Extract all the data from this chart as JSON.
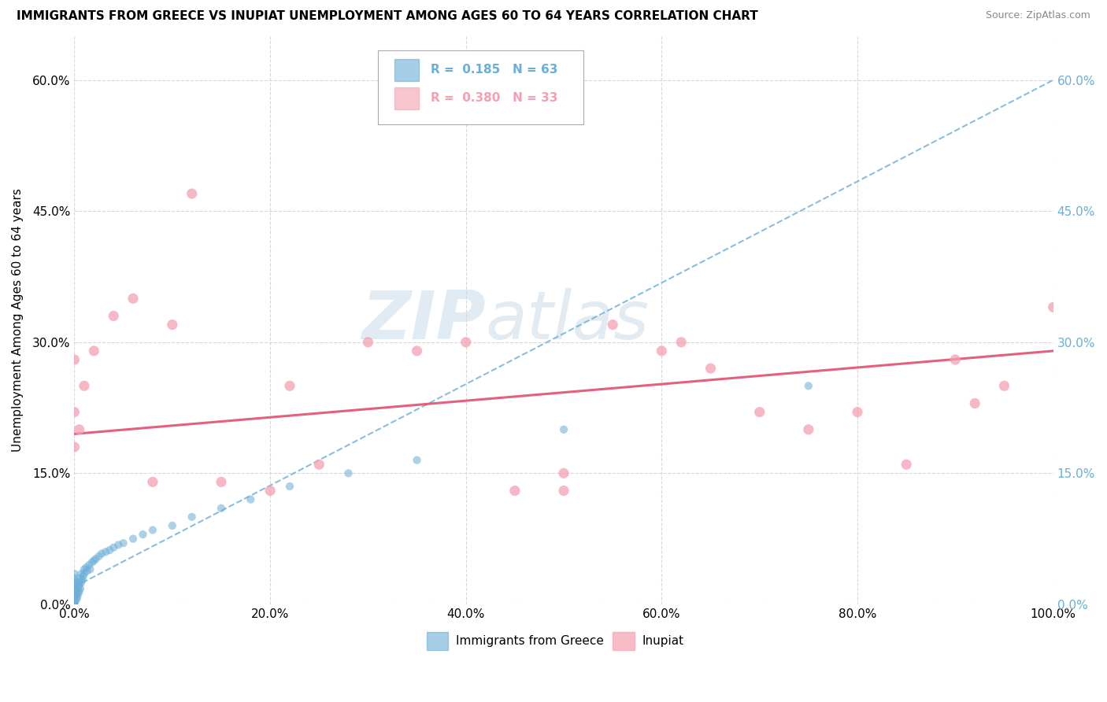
{
  "title": "IMMIGRANTS FROM GREECE VS INUPIAT UNEMPLOYMENT AMONG AGES 60 TO 64 YEARS CORRELATION CHART",
  "source": "Source: ZipAtlas.com",
  "ylabel": "Unemployment Among Ages 60 to 64 years",
  "legend_labels": [
    "Immigrants from Greece",
    "Inupiat"
  ],
  "legend_r": [
    "R =  0.185",
    "R =  0.380"
  ],
  "legend_n": [
    "N = 63",
    "N = 33"
  ],
  "color_greece": "#6baed6",
  "color_inupiat": "#f4a0b0",
  "trendline_color_greece": "#6baed6",
  "trendline_color_inupiat": "#e05070",
  "watermark_zip": "ZIP",
  "watermark_atlas": "atlas",
  "xlim": [
    0.0,
    1.0
  ],
  "ylim": [
    0.0,
    0.65
  ],
  "xticks": [
    0.0,
    0.2,
    0.4,
    0.6,
    0.8,
    1.0
  ],
  "yticks": [
    0.0,
    0.15,
    0.3,
    0.45,
    0.6
  ],
  "greece_scatter_x": [
    0.0,
    0.0,
    0.0,
    0.0,
    0.0,
    0.0,
    0.0,
    0.0,
    0.0,
    0.0,
    0.0,
    0.0,
    0.0,
    0.0,
    0.0,
    0.0,
    0.0,
    0.0,
    0.0,
    0.0,
    0.002,
    0.002,
    0.003,
    0.003,
    0.004,
    0.004,
    0.005,
    0.005,
    0.005,
    0.006,
    0.006,
    0.007,
    0.007,
    0.008,
    0.009,
    0.01,
    0.01,
    0.012,
    0.013,
    0.015,
    0.016,
    0.018,
    0.02,
    0.022,
    0.025,
    0.028,
    0.032,
    0.036,
    0.04,
    0.045,
    0.05,
    0.06,
    0.07,
    0.08,
    0.1,
    0.12,
    0.15,
    0.18,
    0.22,
    0.28,
    0.35,
    0.5,
    0.75
  ],
  "greece_scatter_y": [
    0.0,
    0.0,
    0.002,
    0.003,
    0.004,
    0.005,
    0.006,
    0.007,
    0.008,
    0.01,
    0.012,
    0.014,
    0.016,
    0.018,
    0.02,
    0.022,
    0.025,
    0.028,
    0.03,
    0.035,
    0.005,
    0.01,
    0.008,
    0.015,
    0.012,
    0.02,
    0.015,
    0.022,
    0.025,
    0.018,
    0.03,
    0.025,
    0.035,
    0.028,
    0.032,
    0.04,
    0.035,
    0.042,
    0.038,
    0.045,
    0.04,
    0.048,
    0.05,
    0.052,
    0.055,
    0.058,
    0.06,
    0.062,
    0.065,
    0.068,
    0.07,
    0.075,
    0.08,
    0.085,
    0.09,
    0.1,
    0.11,
    0.12,
    0.135,
    0.15,
    0.165,
    0.2,
    0.25
  ],
  "inupiat_scatter_x": [
    0.0,
    0.0,
    0.0,
    0.005,
    0.01,
    0.02,
    0.04,
    0.06,
    0.08,
    0.1,
    0.12,
    0.15,
    0.2,
    0.22,
    0.25,
    0.3,
    0.35,
    0.4,
    0.45,
    0.5,
    0.5,
    0.55,
    0.6,
    0.62,
    0.65,
    0.7,
    0.75,
    0.8,
    0.85,
    0.9,
    0.92,
    0.95,
    1.0
  ],
  "inupiat_scatter_y": [
    0.18,
    0.22,
    0.28,
    0.2,
    0.25,
    0.29,
    0.33,
    0.35,
    0.14,
    0.32,
    0.47,
    0.14,
    0.13,
    0.25,
    0.16,
    0.3,
    0.29,
    0.3,
    0.13,
    0.13,
    0.15,
    0.32,
    0.29,
    0.3,
    0.27,
    0.22,
    0.2,
    0.22,
    0.16,
    0.28,
    0.23,
    0.25,
    0.34
  ],
  "right_axis_color": "#6baed6",
  "grid_color": "#d8d8d8",
  "grid_style": "--"
}
